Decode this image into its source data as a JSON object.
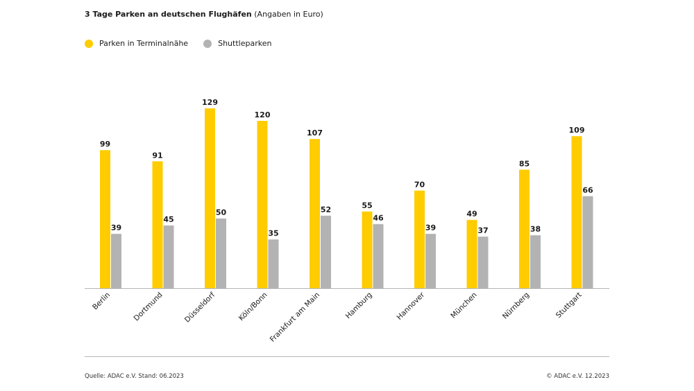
{
  "header": {
    "title_bold": "3 Tage Parken an deutschen Flughäfen",
    "title_suffix": " (Angaben in Euro)"
  },
  "legend": [
    {
      "label": "Parken in Terminalnähe",
      "color": "#ffcc00"
    },
    {
      "label": "Shuttleparken",
      "color": "#b3b3b3"
    }
  ],
  "footer": {
    "source": "Quelle: ADAC e.V. Stand: 06.2023",
    "copyright": "© ADAC e.V. 12.2023"
  },
  "chart_data": {
    "type": "bar",
    "categories": [
      "Berlin",
      "Dortmund",
      "Düsseldorf",
      "Köln/Bonn",
      "Frankfurt am Main",
      "Hamburg",
      "Hannover",
      "München",
      "Nürnberg",
      "Stuttgart"
    ],
    "series": [
      {
        "name": "Parken in Terminalnähe",
        "color": "#ffcc00",
        "values": [
          99,
          91,
          129,
          120,
          107,
          55,
          70,
          49,
          85,
          109
        ]
      },
      {
        "name": "Shuttleparken",
        "color": "#b3b3b3",
        "values": [
          39,
          45,
          50,
          35,
          52,
          46,
          39,
          37,
          38,
          66
        ]
      }
    ],
    "title": "3 Tage Parken an deutschen Flughäfen (Angaben in Euro)",
    "ylim": [
      0,
      129
    ],
    "grid": false,
    "legend_position": "top-left"
  }
}
